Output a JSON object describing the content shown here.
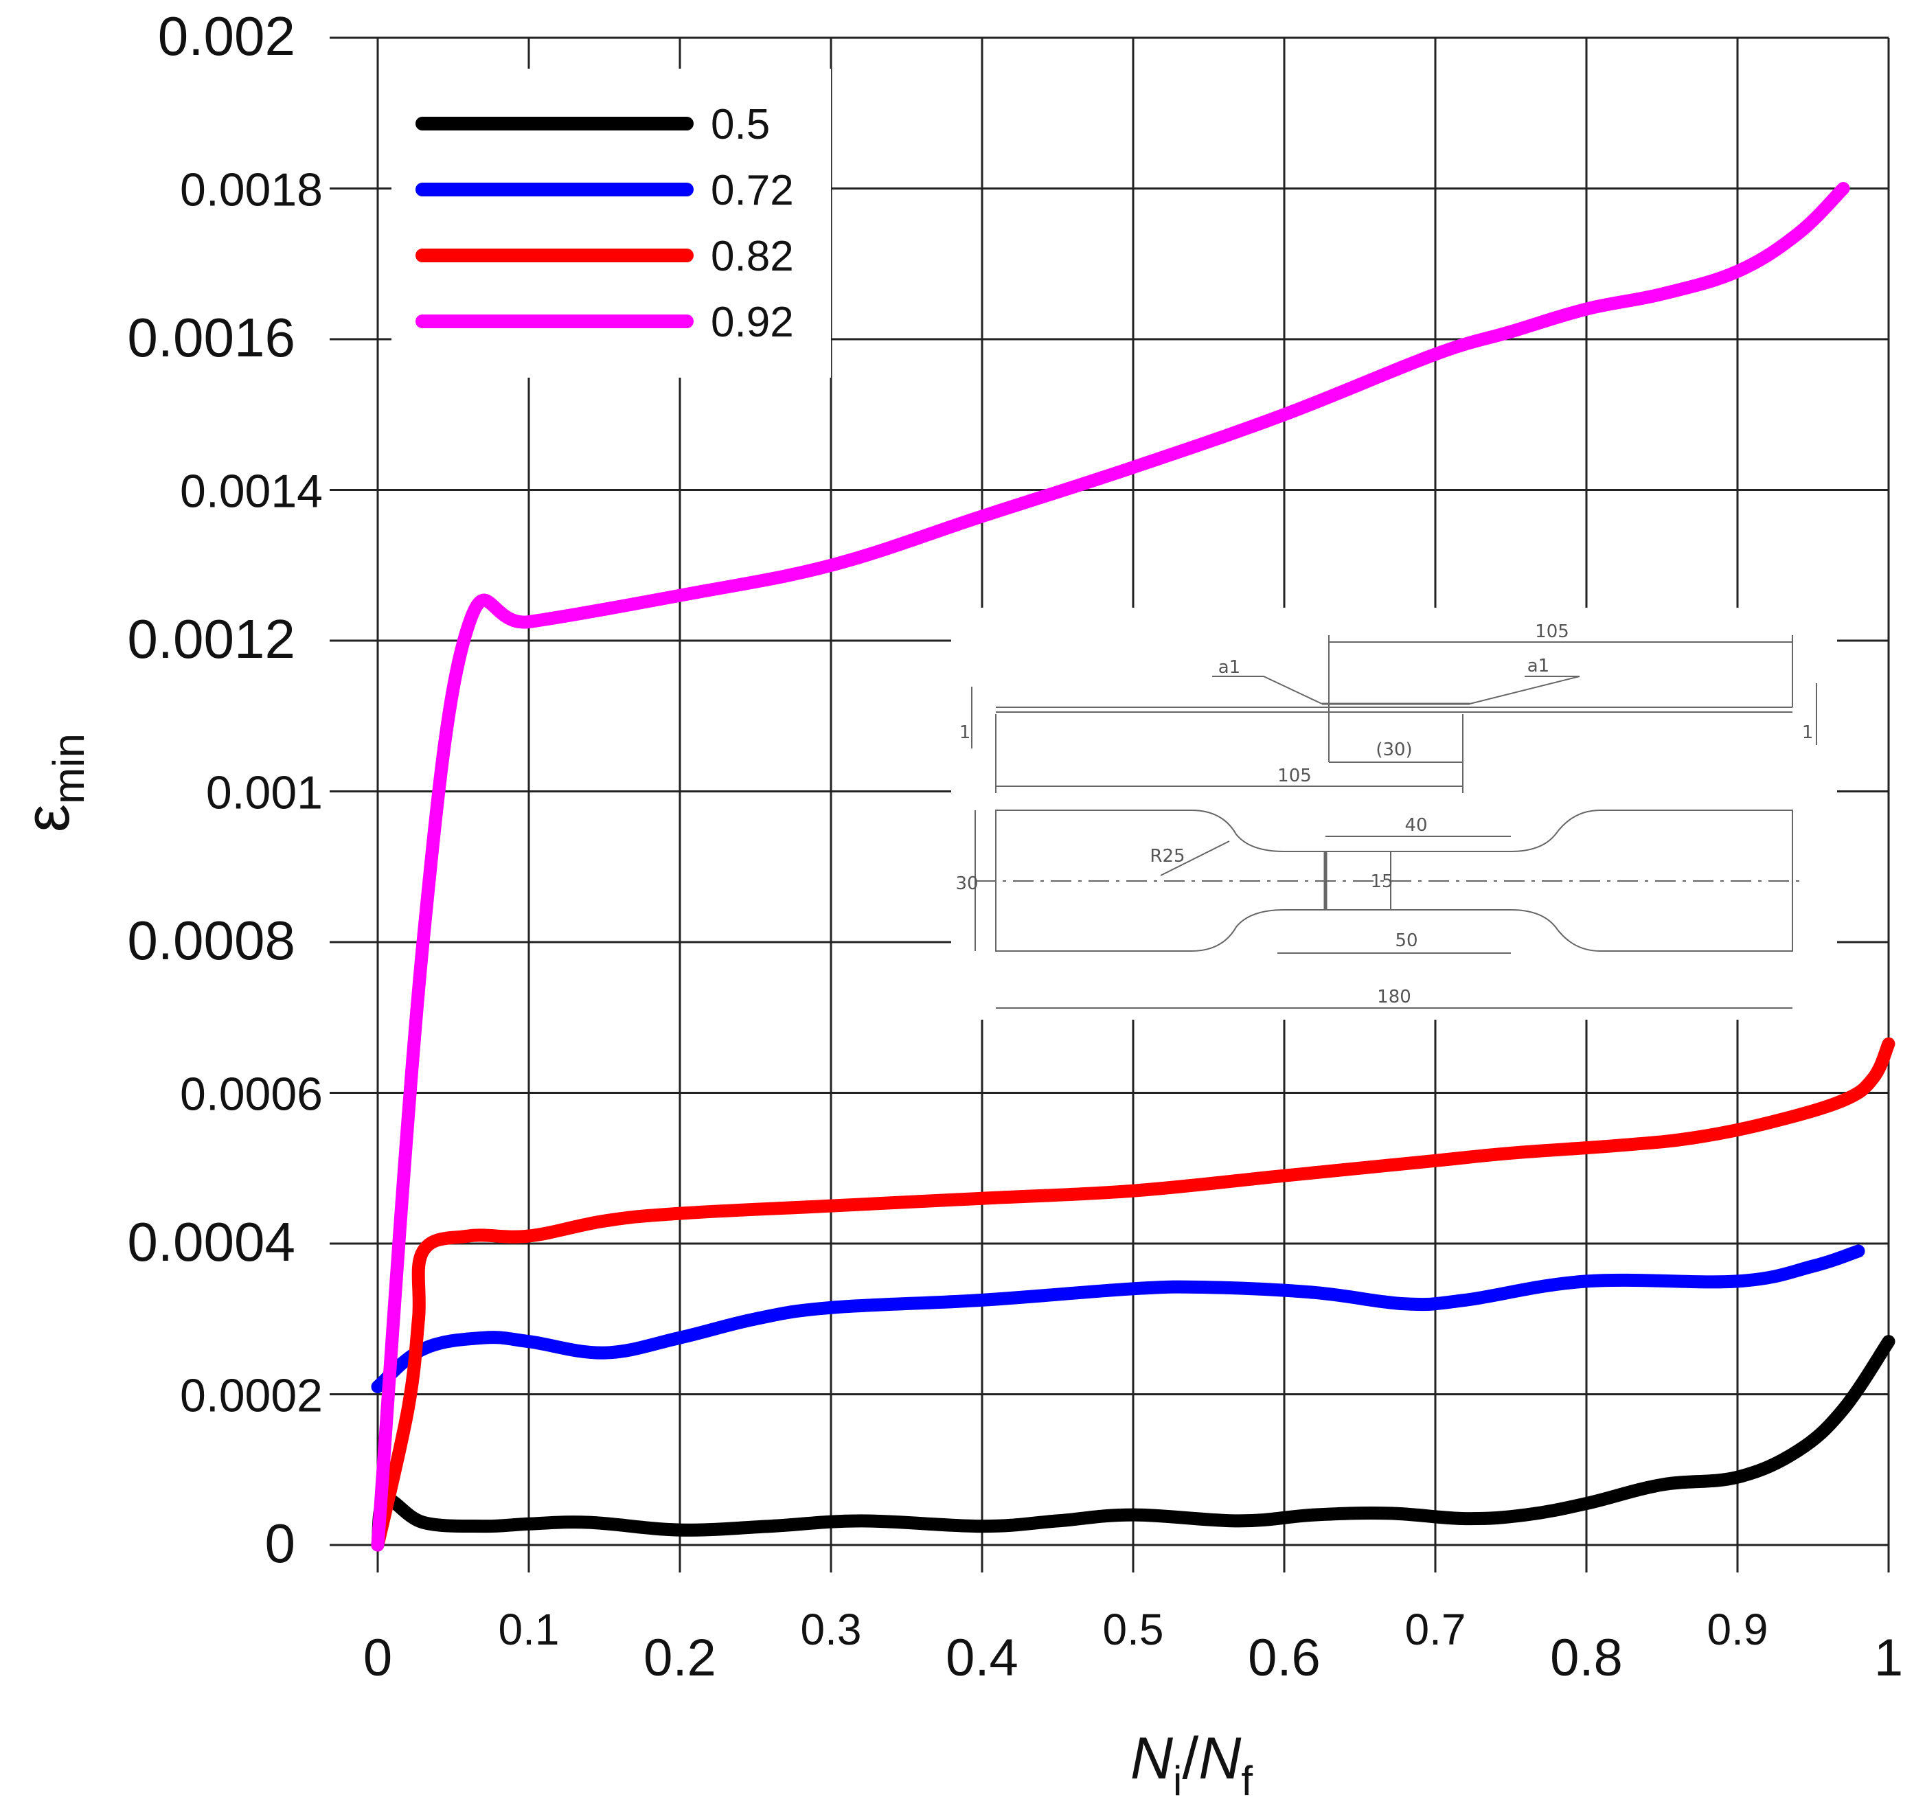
{
  "chart_data": {
    "type": "line",
    "xlim": [
      0,
      1
    ],
    "ylim": [
      0,
      0.002
    ],
    "grid": true,
    "xlabel": {
      "main1": "N",
      "sub1": "i",
      "slash": "/",
      "main2": "N",
      "sub2": "f"
    },
    "ylabel": {
      "main": "ε",
      "sub": "min"
    },
    "x_ticks": [
      "0",
      "0.1",
      "0.2",
      "0.3",
      "0.4",
      "0.5",
      "0.6",
      "0.7",
      "0.8",
      "0.9",
      "1"
    ],
    "y_ticks": [
      "0",
      "0.0002",
      "0.0004",
      "0.0006",
      "0.0008",
      "0.001",
      "0.0012",
      "0.0014",
      "0.0016",
      "0.0018",
      "0.002"
    ],
    "legend_position": "top-left",
    "series": [
      {
        "name": "0.5",
        "color": "#000000",
        "x": [
          0,
          0.005,
          0.03,
          0.07,
          0.1,
          0.14,
          0.2,
          0.26,
          0.32,
          0.4,
          0.45,
          0.5,
          0.57,
          0.62,
          0.67,
          0.72,
          0.76,
          0.8,
          0.85,
          0.9,
          0.94,
          0.97,
          1.0
        ],
        "y": [
          0,
          6e-05,
          3e-05,
          2.5e-05,
          2.8e-05,
          3e-05,
          2e-05,
          2.5e-05,
          3.2e-05,
          2.5e-05,
          3.2e-05,
          4e-05,
          3.2e-05,
          4e-05,
          4.2e-05,
          3.5e-05,
          4e-05,
          5.5e-05,
          8e-05,
          9e-05,
          0.000125,
          0.00018,
          0.00027
        ]
      },
      {
        "name": "0.72",
        "color": "#0000ff",
        "x": [
          0,
          0.03,
          0.07,
          0.1,
          0.15,
          0.2,
          0.25,
          0.3,
          0.4,
          0.5,
          0.55,
          0.62,
          0.68,
          0.72,
          0.8,
          0.9,
          0.95,
          0.98
        ],
        "y": [
          0.00021,
          0.00026,
          0.000275,
          0.00027,
          0.000255,
          0.000275,
          0.0003,
          0.000315,
          0.000325,
          0.00034,
          0.000342,
          0.000335,
          0.00032,
          0.000325,
          0.00035,
          0.00035,
          0.00037,
          0.00039
        ]
      },
      {
        "name": "0.82",
        "color": "#ff0000",
        "x": [
          0,
          0.02,
          0.027,
          0.03,
          0.06,
          0.1,
          0.15,
          0.2,
          0.3,
          0.4,
          0.5,
          0.6,
          0.7,
          0.75,
          0.82,
          0.87,
          0.92,
          0.97,
          0.99,
          1.0
        ],
        "y": [
          0,
          0.00018,
          0.0003,
          0.00039,
          0.00041,
          0.00041,
          0.00043,
          0.00044,
          0.00045,
          0.00046,
          0.00047,
          0.00049,
          0.00051,
          0.00052,
          0.00053,
          0.00054,
          0.00056,
          0.00059,
          0.00062,
          0.000665
        ]
      },
      {
        "name": "0.92",
        "color": "#ff00ff",
        "x": [
          0,
          0.03,
          0.06,
          0.1,
          0.2,
          0.3,
          0.4,
          0.5,
          0.6,
          0.7,
          0.75,
          0.8,
          0.85,
          0.9,
          0.94,
          0.97
        ],
        "y": [
          0,
          0.0008,
          0.00122,
          0.001225,
          0.00126,
          0.0013,
          0.001365,
          0.00143,
          0.0015,
          0.00158,
          0.00161,
          0.00164,
          0.00166,
          0.00169,
          0.00174,
          0.0018
        ]
      }
    ],
    "inset_drawing": {
      "dimension_labels": [
        "105",
        "105",
        "(30)",
        "a1",
        "a1",
        "1",
        "1",
        "40",
        "30",
        "R25",
        "15",
        "50",
        "180"
      ]
    }
  }
}
